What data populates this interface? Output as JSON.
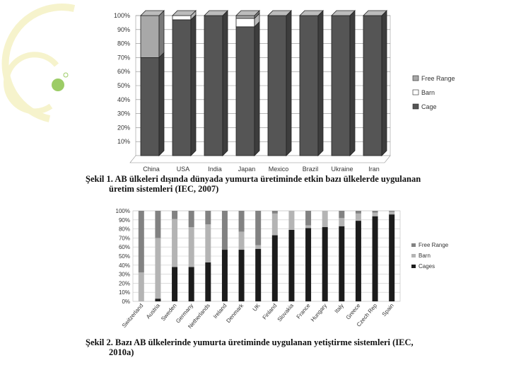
{
  "colors": {
    "deco_ring": "#f6f3cc",
    "deco_ball": "#9ccc66",
    "cage": "#555555",
    "barn": "#ffffff",
    "free_range": "#a8a8a8",
    "cage2": "#1c1c1c",
    "barn2": "#b4b4b4",
    "free_range2": "#828282"
  },
  "captions": {
    "fig1_line1": "Şekil 1. AB ülkeleri dışında dünyada yumurta üretiminde etkin bazı ülkelerde uygulanan",
    "fig1_line2": "üretim sistemleri (IEC, 2007)",
    "fig2_line1": "Şekil 2. Bazı AB ülkelerinde yumurta üretiminde uygulanan yetiştirme sistemleri (IEC,",
    "fig2_line2": "2010a)"
  },
  "chart_data": [
    {
      "type": "bar",
      "stacked": true,
      "style": "3d",
      "categories": [
        "China",
        "USA",
        "India",
        "Japan",
        "Mexico",
        "Brazil",
        "Ukraine",
        "Iran"
      ],
      "series": [
        {
          "name": "Cage",
          "values": [
            70,
            97,
            100,
            92,
            100,
            100,
            100,
            100
          ]
        },
        {
          "name": "Barn",
          "values": [
            0,
            3,
            0,
            6,
            0,
            0,
            0,
            0
          ]
        },
        {
          "name": "Free Range",
          "values": [
            30,
            0,
            0,
            2,
            0,
            0,
            0,
            0
          ]
        }
      ],
      "yticks": [
        "100%",
        "90%",
        "80%",
        "70%",
        "60%",
        "50%",
        "40%",
        "30%",
        "20%",
        "10%"
      ],
      "ylim": [
        0,
        100
      ],
      "legend_position": "right",
      "grid": true
    },
    {
      "type": "bar",
      "stacked": true,
      "categories": [
        "Switzerland",
        "Austria",
        "Sweden",
        "Germany",
        "Netherlands",
        "Ireland",
        "Denmark",
        "UK",
        "Finland",
        "Slovakia",
        "France",
        "Hungary",
        "Italy",
        "Greece",
        "Czech Rep",
        "Spain"
      ],
      "series": [
        {
          "name": "Cages",
          "values": [
            0,
            3,
            38,
            38,
            43,
            57,
            57,
            58,
            73,
            79,
            81,
            82,
            83,
            89,
            94,
            96
          ]
        },
        {
          "name": "Barn",
          "values": [
            32,
            67,
            53,
            44,
            42,
            0,
            20,
            4,
            24,
            21,
            3,
            18,
            9,
            8,
            4,
            3
          ]
        },
        {
          "name": "Free Range",
          "values": [
            68,
            30,
            9,
            18,
            15,
            43,
            23,
            38,
            3,
            0,
            16,
            0,
            8,
            3,
            2,
            1
          ]
        }
      ],
      "yticks": [
        "100%",
        "90%",
        "80%",
        "70%",
        "60%",
        "50%",
        "40%",
        "30%",
        "20%",
        "10%",
        "0%"
      ],
      "ylim": [
        0,
        100
      ],
      "legend_position": "right",
      "grid": true
    }
  ]
}
